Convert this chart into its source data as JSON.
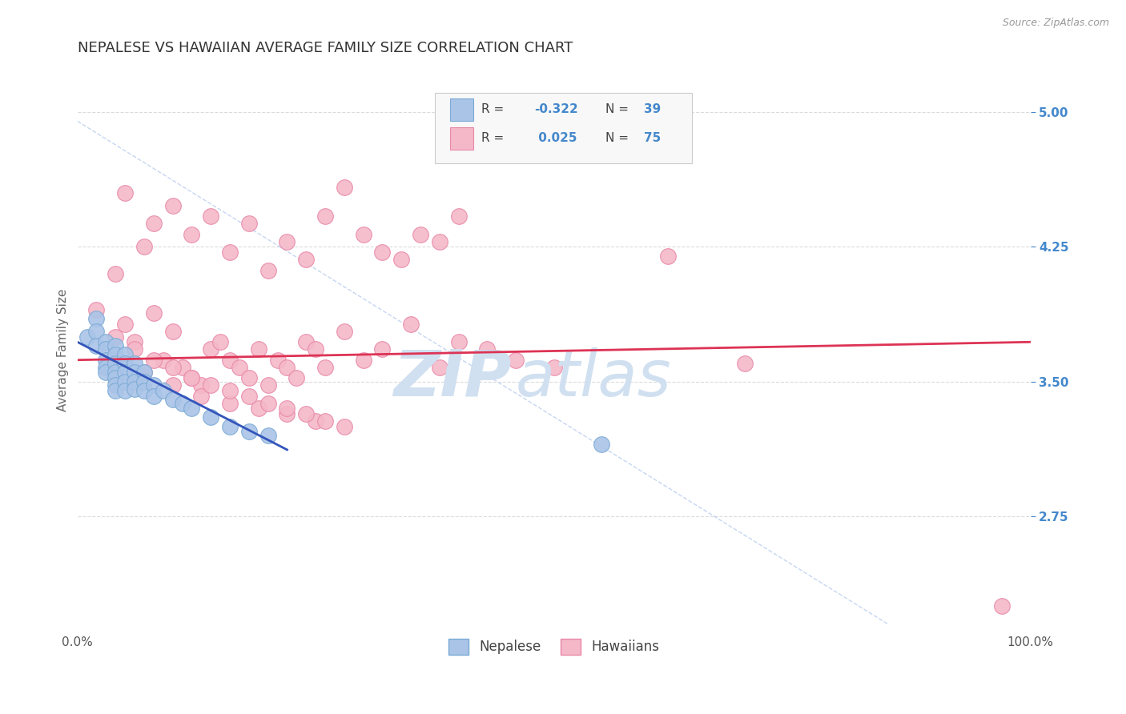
{
  "title": "NEPALESE VS HAWAIIAN AVERAGE FAMILY SIZE CORRELATION CHART",
  "source": "Source: ZipAtlas.com",
  "ylabel": "Average Family Size",
  "xlim": [
    0.0,
    1.0
  ],
  "ylim": [
    2.1,
    5.25
  ],
  "yticks": [
    2.75,
    3.5,
    4.25,
    5.0
  ],
  "xticklabels": [
    "0.0%",
    "100.0%"
  ],
  "yticklabels_right": [
    "2.75",
    "3.50",
    "4.25",
    "5.00"
  ],
  "nepalese_color": "#aac4e8",
  "hawaiian_color": "#f4b8c8",
  "nepalese_edge": "#7aaad4",
  "hawaiian_edge": "#e888a8",
  "trend_nepalese_color": "#3355bb",
  "trend_hawaiian_color": "#dd3355",
  "watermark_color": "#d0e0f0",
  "diag_color": "#b8ccee",
  "background_color": "#ffffff",
  "grid_color": "#cccccc",
  "legend_box_color": "#f8f8f8",
  "legend_box_edge": "#cccccc",
  "title_color": "#333333",
  "axis_label_color": "#666666",
  "tick_color_right": "#4488cc",
  "nepalese_points_x": [
    0.01,
    0.02,
    0.02,
    0.02,
    0.03,
    0.03,
    0.03,
    0.03,
    0.03,
    0.04,
    0.04,
    0.04,
    0.04,
    0.04,
    0.04,
    0.04,
    0.05,
    0.05,
    0.05,
    0.05,
    0.05,
    0.06,
    0.06,
    0.06,
    0.06,
    0.07,
    0.07,
    0.07,
    0.08,
    0.08,
    0.09,
    0.1,
    0.11,
    0.12,
    0.14,
    0.16,
    0.18,
    0.2,
    0.55
  ],
  "nepalese_points_y": [
    3.75,
    3.85,
    3.78,
    3.7,
    3.72,
    3.68,
    3.62,
    3.58,
    3.55,
    3.7,
    3.65,
    3.6,
    3.55,
    3.52,
    3.48,
    3.45,
    3.65,
    3.6,
    3.55,
    3.5,
    3.45,
    3.6,
    3.55,
    3.5,
    3.46,
    3.55,
    3.5,
    3.45,
    3.48,
    3.42,
    3.45,
    3.4,
    3.38,
    3.35,
    3.3,
    3.25,
    3.22,
    3.2,
    3.15
  ],
  "hawaiian_points_x": [
    0.02,
    0.04,
    0.05,
    0.06,
    0.07,
    0.08,
    0.09,
    0.1,
    0.11,
    0.12,
    0.13,
    0.14,
    0.15,
    0.16,
    0.17,
    0.18,
    0.19,
    0.2,
    0.21,
    0.22,
    0.23,
    0.24,
    0.25,
    0.26,
    0.05,
    0.08,
    0.1,
    0.12,
    0.14,
    0.16,
    0.18,
    0.2,
    0.22,
    0.24,
    0.26,
    0.28,
    0.3,
    0.32,
    0.34,
    0.36,
    0.38,
    0.4,
    0.28,
    0.3,
    0.32,
    0.35,
    0.38,
    0.4,
    0.43,
    0.46,
    0.5,
    0.07,
    0.1,
    0.13,
    0.16,
    0.19,
    0.22,
    0.25,
    0.28,
    0.04,
    0.06,
    0.08,
    0.1,
    0.12,
    0.14,
    0.16,
    0.18,
    0.2,
    0.22,
    0.24,
    0.26,
    0.62,
    0.7,
    0.97
  ],
  "hawaiian_points_y": [
    3.9,
    4.1,
    3.82,
    3.72,
    4.25,
    3.88,
    3.62,
    3.78,
    3.58,
    3.52,
    3.48,
    3.68,
    3.72,
    3.62,
    3.58,
    3.52,
    3.68,
    3.48,
    3.62,
    3.58,
    3.52,
    3.72,
    3.68,
    3.58,
    4.55,
    4.38,
    4.48,
    4.32,
    4.42,
    4.22,
    4.38,
    4.12,
    4.28,
    4.18,
    4.42,
    4.58,
    4.32,
    4.22,
    4.18,
    4.32,
    4.28,
    4.42,
    3.78,
    3.62,
    3.68,
    3.82,
    3.58,
    3.72,
    3.68,
    3.62,
    3.58,
    3.55,
    3.48,
    3.42,
    3.38,
    3.35,
    3.32,
    3.28,
    3.25,
    3.75,
    3.68,
    3.62,
    3.58,
    3.52,
    3.48,
    3.45,
    3.42,
    3.38,
    3.35,
    3.32,
    3.28,
    4.2,
    3.6,
    2.25
  ],
  "hawaiian_trend_y0": 3.62,
  "hawaiian_trend_y1": 3.72,
  "nepalese_trend_y0": 3.72,
  "nepalese_trend_y1": 3.12
}
